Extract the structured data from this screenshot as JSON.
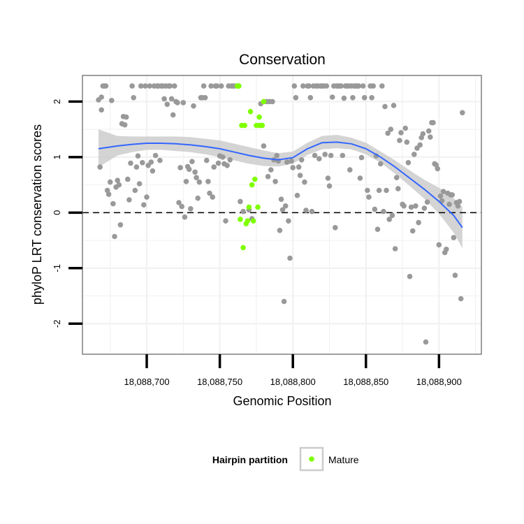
{
  "chart_data": {
    "type": "scatter",
    "title": "Conservation",
    "xlabel": "Genomic Position",
    "ylabel": "phyloP LRT conservation scores",
    "xlim": [
      18088656,
      18088929
    ],
    "ylim": [
      -2.55,
      2.47
    ],
    "x_ticks": [
      18088700,
      18088750,
      18088800,
      18088850,
      18088900
    ],
    "x_tick_labels": [
      "18,088,700",
      "18,088,750",
      "18,088,800",
      "18,088,850",
      "18,088,900"
    ],
    "y_ticks": [
      -2,
      -1,
      0,
      1,
      2
    ],
    "y_tick_labels": [
      "-2",
      "-1",
      "0",
      "1",
      "2"
    ],
    "grid": true,
    "reference_line": {
      "y": 0,
      "style": "dashed"
    },
    "colors": {
      "other_points": "#999999",
      "mature_points": "#7fff00",
      "smooth_line": "#3366ff",
      "confidence_band": "#cccccc",
      "grid": "#f2f2f2",
      "panel_border": "#7f7f7f"
    },
    "legend": {
      "title": "Hairpin partition",
      "entries": [
        "Mature"
      ],
      "position": "bottom"
    },
    "series": [
      {
        "name": "Other",
        "points": [
          [
            18088667,
            2.03
          ],
          [
            18088668,
            0.82
          ],
          [
            18088669,
            2.08
          ],
          [
            18088669,
            1.85
          ],
          [
            18088670,
            2.28
          ],
          [
            18088671,
            2.28
          ],
          [
            18088672,
            2.28
          ],
          [
            18088673,
            0.4
          ],
          [
            18088674,
            0.33
          ],
          [
            18088675,
            0.55
          ],
          [
            18088676,
            2.02
          ],
          [
            18088677,
            0.16
          ],
          [
            18088678,
            -0.43
          ],
          [
            18088679,
            0.46
          ],
          [
            18088680,
            0.58
          ],
          [
            18088681,
            0.5
          ],
          [
            18088682,
            -0.22
          ],
          [
            18088683,
            1.6
          ],
          [
            18088684,
            1.73
          ],
          [
            18088685,
            1.58
          ],
          [
            18088686,
            1.72
          ],
          [
            18088687,
            0.6
          ],
          [
            18088688,
            0.23
          ],
          [
            18088689,
            0.89
          ],
          [
            18088690,
            2.28
          ],
          [
            18088691,
            2.07
          ],
          [
            18088692,
            0.4
          ],
          [
            18088693,
            0.82
          ],
          [
            18088694,
            1.02
          ],
          [
            18088695,
            0.52
          ],
          [
            18088696,
            2.28
          ],
          [
            18088697,
            0.9
          ],
          [
            18088698,
            0.14
          ],
          [
            18088699,
            2.28
          ],
          [
            18088700,
            0.28
          ],
          [
            18088701,
            0.85
          ],
          [
            18088702,
            2.28
          ],
          [
            18088703,
            0.91
          ],
          [
            18088704,
            0.75
          ],
          [
            18088705,
            2.28
          ],
          [
            18088706,
            1.03
          ],
          [
            18088707,
            2.28
          ],
          [
            18088708,
            2.28
          ],
          [
            18088709,
            0.94
          ],
          [
            18088710,
            2.28
          ],
          [
            18088711,
            2.28
          ],
          [
            18088712,
            2.05
          ],
          [
            18088713,
            2.28
          ],
          [
            18088714,
            1.95
          ],
          [
            18088715,
            2.28
          ],
          [
            18088716,
            2.28
          ],
          [
            18088717,
            2.05
          ],
          [
            18088718,
            1.76
          ],
          [
            18088719,
            2.28
          ],
          [
            18088720,
            2.0
          ],
          [
            18088721,
            1.98
          ],
          [
            18088722,
            0.18
          ],
          [
            18088723,
            0.81
          ],
          [
            18088724,
            0.11
          ],
          [
            18088725,
            1.98
          ],
          [
            18088726,
            -0.08
          ],
          [
            18088727,
            0.56
          ],
          [
            18088728,
            0.83
          ],
          [
            18088729,
            0.78
          ],
          [
            18088730,
            0.07
          ],
          [
            18088731,
            0.92
          ],
          [
            18088732,
            1.92
          ],
          [
            18088733,
            0.73
          ],
          [
            18088734,
            0.63
          ],
          [
            18088735,
            0.26
          ],
          [
            18088736,
            0.55
          ],
          [
            18088737,
            2.07
          ],
          [
            18088738,
            2.07
          ],
          [
            18088739,
            2.28
          ],
          [
            18088740,
            2.07
          ],
          [
            18088741,
            0.94
          ],
          [
            18088742,
            0.56
          ],
          [
            18088743,
            0.35
          ],
          [
            18088744,
            2.28
          ],
          [
            18088745,
            0.28
          ],
          [
            18088746,
            0.82
          ],
          [
            18088747,
            2.28
          ],
          [
            18088748,
            2.28
          ],
          [
            18088749,
            0.89
          ],
          [
            18088750,
            1.02
          ],
          [
            18088751,
            2.28
          ],
          [
            18088752,
            1.0
          ],
          [
            18088753,
            0.88
          ],
          [
            18088754,
            -0.15
          ],
          [
            18088755,
            0.85
          ],
          [
            18088756,
            2.28
          ],
          [
            18088757,
            0.95
          ],
          [
            18088758,
            2.28
          ],
          [
            18088759,
            2.28
          ],
          [
            18088760,
            2.28
          ],
          [
            18088762,
            2.28
          ],
          [
            18088763,
            2.28
          ],
          [
            18088764,
            0.2
          ],
          [
            18088766,
            0.02
          ],
          [
            18088770,
            0.05
          ],
          [
            18088772,
            -0.11
          ],
          [
            18088778,
            1.96
          ],
          [
            18088780,
            1.2
          ],
          [
            18088782,
            2.0
          ],
          [
            18088783,
            0.65
          ],
          [
            18088784,
            2.0
          ],
          [
            18088785,
            0.77
          ],
          [
            18088786,
            2.0
          ],
          [
            18088787,
            0.95
          ],
          [
            18088788,
            0.56
          ],
          [
            18088789,
            1.03
          ],
          [
            18088790,
            0.93
          ],
          [
            18088791,
            -0.32
          ],
          [
            18088792,
            0.24
          ],
          [
            18088793,
            0.05
          ],
          [
            18088794,
            -1.6
          ],
          [
            18088795,
            0.12
          ],
          [
            18088796,
            0.91
          ],
          [
            18088797,
            -0.15
          ],
          [
            18088798,
            -0.82
          ],
          [
            18088799,
            0.93
          ],
          [
            18088800,
            0.81
          ],
          [
            18088801,
            2.28
          ],
          [
            18088802,
            2.07
          ],
          [
            18088803,
            0.31
          ],
          [
            18088804,
            0.82
          ],
          [
            18088805,
            0.67
          ],
          [
            18088806,
            0.95
          ],
          [
            18088807,
            2.28
          ],
          [
            18088808,
            0.55
          ],
          [
            18088809,
            0.04
          ],
          [
            18088810,
            2.28
          ],
          [
            18088811,
            2.28
          ],
          [
            18088812,
            2.07
          ],
          [
            18088813,
            0.02
          ],
          [
            18088814,
            2.28
          ],
          [
            18088815,
            1.03
          ],
          [
            18088816,
            2.28
          ],
          [
            18088817,
            2.28
          ],
          [
            18088818,
            0.97
          ],
          [
            18088819,
            2.28
          ],
          [
            18088820,
            2.28
          ],
          [
            18088821,
            2.28
          ],
          [
            18088822,
            1.05
          ],
          [
            18088823,
            2.28
          ],
          [
            18088824,
            0.62
          ],
          [
            18088825,
            0.48
          ],
          [
            18088826,
            1.03
          ],
          [
            18088827,
            2.08
          ],
          [
            18088828,
            2.28
          ],
          [
            18088829,
            -0.27
          ],
          [
            18088830,
            2.28
          ],
          [
            18088831,
            2.28
          ],
          [
            18088832,
            2.28
          ],
          [
            18088833,
            2.28
          ],
          [
            18088834,
            1.03
          ],
          [
            18088835,
            2.06
          ],
          [
            18088836,
            2.28
          ],
          [
            18088837,
            2.28
          ],
          [
            18088838,
            2.28
          ],
          [
            18088839,
            0.77
          ],
          [
            18088840,
            2.28
          ],
          [
            18088841,
            2.07
          ],
          [
            18088842,
            2.28
          ],
          [
            18088843,
            2.28
          ],
          [
            18088844,
            2.28
          ],
          [
            18088845,
            2.28
          ],
          [
            18088846,
            0.62
          ],
          [
            18088847,
            0.99
          ],
          [
            18088848,
            2.28
          ],
          [
            18088849,
            2.07
          ],
          [
            18088851,
            0.4
          ],
          [
            18088852,
            0.28
          ],
          [
            18088853,
            2.28
          ],
          [
            18088854,
            2.07
          ],
          [
            18088855,
            2.28
          ],
          [
            18088856,
            0.06
          ],
          [
            18088857,
            1.02
          ],
          [
            18088858,
            -0.3
          ],
          [
            18088859,
            0.4
          ],
          [
            18088860,
            0.88
          ],
          [
            18088861,
            2.28
          ],
          [
            18088862,
            0.02
          ],
          [
            18088863,
            1.91
          ],
          [
            18088864,
            0.4
          ],
          [
            18088865,
            1.43
          ],
          [
            18088866,
            -0.12
          ],
          [
            18088867,
            1.5
          ],
          [
            18088868,
            -0.05
          ],
          [
            18088869,
            1.93
          ],
          [
            18088870,
            -0.65
          ],
          [
            18088871,
            0.63
          ],
          [
            18088872,
            0.43
          ],
          [
            18088873,
            1.3
          ],
          [
            18088874,
            1.44
          ],
          [
            18088875,
            0.15
          ],
          [
            18088876,
            0.12
          ],
          [
            18088877,
            1.52
          ],
          [
            18088878,
            1.27
          ],
          [
            18088879,
            0.9
          ],
          [
            18088880,
            -1.15
          ],
          [
            18088881,
            0.1
          ],
          [
            18088882,
            -0.33
          ],
          [
            18088883,
            1.05
          ],
          [
            18088884,
            0.12
          ],
          [
            18088885,
            1.16
          ],
          [
            18088886,
            -0.18
          ],
          [
            18088887,
            1.22
          ],
          [
            18088888,
            1.35
          ],
          [
            18088889,
            1.42
          ],
          [
            18088890,
            0.08
          ],
          [
            18088891,
            -2.33
          ],
          [
            18088892,
            0.19
          ],
          [
            18088893,
            1.47
          ],
          [
            18088894,
            1.36
          ],
          [
            18088895,
            1.62
          ],
          [
            18088896,
            1.62
          ],
          [
            18088897,
            0.88
          ],
          [
            18088898,
            0.86
          ],
          [
            18088899,
            0.79
          ],
          [
            18088900,
            -0.58
          ],
          [
            18088901,
            0.3
          ],
          [
            18088902,
            0.21
          ],
          [
            18088903,
            0.38
          ],
          [
            18088904,
            -0.72
          ],
          [
            18088905,
            -0.66
          ],
          [
            18088906,
            0.35
          ],
          [
            18088907,
            0.15
          ],
          [
            18088908,
            0.32
          ],
          [
            18088909,
            0.32
          ],
          [
            18088910,
            -0.45
          ],
          [
            18088911,
            -1.13
          ],
          [
            18088912,
            0.18
          ],
          [
            18088913,
            0.12
          ],
          [
            18088914,
            0.2
          ],
          [
            18088915,
            -1.55
          ],
          [
            18088916,
            1.8
          ]
        ]
      },
      {
        "name": "Mature",
        "points": [
          [
            18088762,
            2.28
          ],
          [
            18088763,
            2.28
          ],
          [
            18088764,
            -0.12
          ],
          [
            18088765,
            1.57
          ],
          [
            18088766,
            -0.63
          ],
          [
            18088767,
            1.57
          ],
          [
            18088768,
            -0.2
          ],
          [
            18088769,
            -0.15
          ],
          [
            18088770,
            0.1
          ],
          [
            18088771,
            1.82
          ],
          [
            18088772,
            0.5
          ],
          [
            18088773,
            -0.15
          ],
          [
            18088774,
            0.6
          ],
          [
            18088775,
            1.57
          ],
          [
            18088776,
            0.1
          ],
          [
            18088777,
            1.57
          ],
          [
            18088777,
            1.72
          ],
          [
            18088778,
            1.57
          ],
          [
            18088779,
            1.57
          ],
          [
            18088780,
            2.0
          ]
        ]
      }
    ],
    "smooth": {
      "x": [
        18088667,
        18088680,
        18088690,
        18088700,
        18088710,
        18088720,
        18088730,
        18088740,
        18088750,
        18088760,
        18088770,
        18088780,
        18088790,
        18088800,
        18088810,
        18088820,
        18088830,
        18088840,
        18088850,
        18088860,
        18088870,
        18088880,
        18088890,
        18088900,
        18088910,
        18088916
      ],
      "y": [
        1.15,
        1.2,
        1.23,
        1.25,
        1.25,
        1.24,
        1.22,
        1.19,
        1.15,
        1.09,
        1.03,
        0.98,
        0.95,
        0.99,
        1.15,
        1.26,
        1.27,
        1.24,
        1.15,
        1.0,
        0.82,
        0.62,
        0.42,
        0.2,
        -0.05,
        -0.27
      ],
      "lower": [
        0.82,
        1.03,
        1.09,
        1.13,
        1.13,
        1.11,
        1.09,
        1.05,
        1.0,
        0.94,
        0.88,
        0.84,
        0.83,
        0.88,
        1.04,
        1.14,
        1.16,
        1.14,
        1.05,
        0.9,
        0.7,
        0.48,
        0.25,
        -0.02,
        -0.36,
        -0.64
      ],
      "upper": [
        1.5,
        1.38,
        1.37,
        1.37,
        1.37,
        1.37,
        1.36,
        1.33,
        1.3,
        1.24,
        1.18,
        1.12,
        1.07,
        1.1,
        1.26,
        1.38,
        1.4,
        1.35,
        1.26,
        1.1,
        0.94,
        0.76,
        0.59,
        0.45,
        0.26,
        0.1
      ]
    }
  }
}
